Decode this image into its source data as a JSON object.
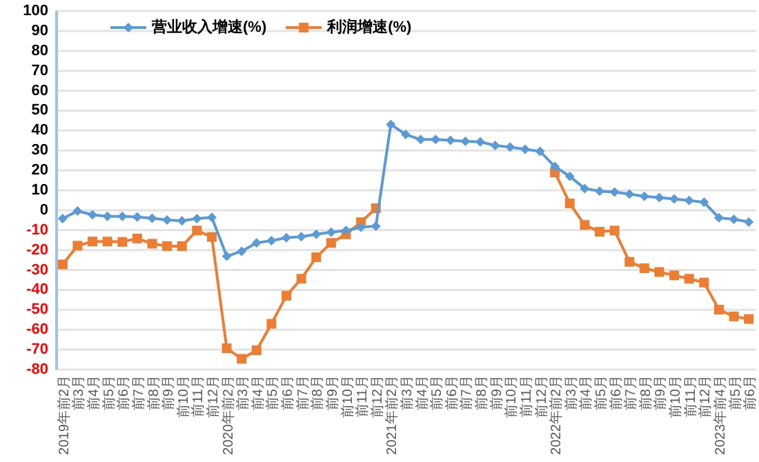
{
  "chart_data": {
    "type": "line",
    "categories": [
      "2019年前2月",
      "前3月",
      "前4月",
      "前5月",
      "前6月",
      "前7月",
      "前8月",
      "前9月",
      "前10月",
      "前11月",
      "前12月",
      "2020年前2月",
      "前3月",
      "前4月",
      "前5月",
      "前6月",
      "前7月",
      "前8月",
      "前9月",
      "前10月",
      "前11月",
      "前12月",
      "2021年前2月",
      "前3月",
      "前4月",
      "前5月",
      "前6月",
      "前7月",
      "前8月",
      "前9月",
      "前10月",
      "前11月",
      "前12月",
      "2022年前2月",
      "前3月",
      "前4月",
      "前5月",
      "前6月",
      "前7月",
      "前8月",
      "前9月",
      "前10月",
      "前11月",
      "前12月",
      "2023年前4月",
      "前5月",
      "前6月"
    ],
    "series": [
      {
        "name": "营业收入增速(%)",
        "color": "#5b9bd5",
        "marker": "diamond",
        "values": [
          -4.2,
          -0.4,
          -2.3,
          -3.1,
          -3.1,
          -3.4,
          -4,
          -4.9,
          -5.3,
          -4.2,
          -3.6,
          -23.1,
          -20.6,
          -16.4,
          -15.3,
          -13.8,
          -13.3,
          -12.1,
          -11,
          -10.2,
          -8.5,
          -8,
          43.1,
          38,
          35.5,
          35.5,
          35.1,
          34.6,
          34.3,
          32.5,
          31.7,
          30.6,
          29.6,
          21.9,
          17,
          10.9,
          9.6,
          9.1,
          8.1,
          7,
          6.4,
          5.7,
          4.9,
          4,
          -3.8,
          -4.5,
          -5.9
        ]
      },
      {
        "name": "利润增速(%)",
        "color": "#ed7d31",
        "marker": "square",
        "values": [
          -27.2,
          -17.8,
          -15.7,
          -15.7,
          -15.9,
          -14.2,
          -16.8,
          -18,
          -18,
          -10.2,
          -13.4,
          -69.3,
          -74.6,
          -70.3,
          -57,
          -42.9,
          -34.4,
          -23.6,
          -16.4,
          -12.1,
          -6,
          1,
          null,
          null,
          null,
          null,
          null,
          null,
          null,
          null,
          null,
          null,
          null,
          19,
          3.4,
          -7.4,
          -10.8,
          -10.2,
          -25.9,
          -29.1,
          -31,
          -32.7,
          -34.4,
          -36.3,
          -49.9,
          -53.3,
          -54.6
        ]
      }
    ],
    "ylim": [
      -80,
      100
    ],
    "yticks": [
      -80,
      -70,
      -60,
      -50,
      -40,
      -30,
      -20,
      -10,
      0,
      10,
      20,
      30,
      40,
      50,
      60,
      70,
      80,
      90,
      100
    ],
    "grid": "y",
    "legend": "top left",
    "line_style": "solid"
  }
}
